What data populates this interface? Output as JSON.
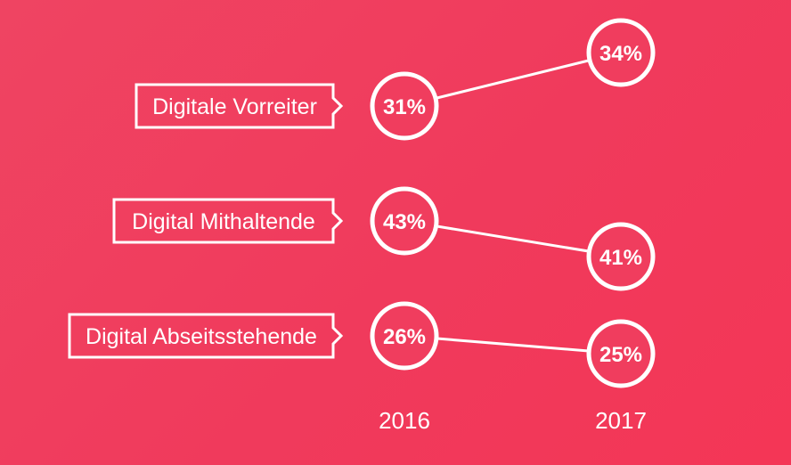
{
  "chart_data": {
    "type": "slope",
    "categories": [
      "Digitale Vorreiter",
      "Digital Mithaltende",
      "Digital Abseitsstehende"
    ],
    "x": [
      "2016",
      "2017"
    ],
    "values_2016": [
      31,
      43,
      26
    ],
    "values_2017": [
      34,
      41,
      25
    ],
    "value_labels_2016": [
      "31%",
      "43%",
      "26%"
    ],
    "value_labels_2017": [
      "34%",
      "41%",
      "25%"
    ],
    "unit": "%"
  },
  "colors": {
    "background": "#f03d5e",
    "foreground": "#ffffff"
  }
}
